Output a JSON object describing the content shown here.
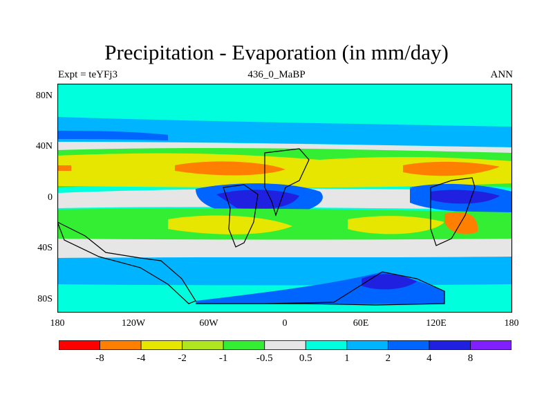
{
  "header": {
    "title": "Precipitation - Evaporation (in mm/day)",
    "left": "Expt = teYFj3",
    "center": "436_0_MaBP",
    "right": "ANN"
  },
  "axes": {
    "y_ticks": [
      "80N",
      "40N",
      "0",
      "40S",
      "80S"
    ],
    "x_ticks": [
      "180",
      "120W",
      "60W",
      "0",
      "60E",
      "120E",
      "180"
    ]
  },
  "colorbar": {
    "colors": [
      "#ff0000",
      "#ff8000",
      "#e6e600",
      "#b0e620",
      "#33ee33",
      "#e6e6e6",
      "#00ffdc",
      "#00b4ff",
      "#0064ff",
      "#2020e0",
      "#8020ff"
    ],
    "labels": [
      "-8",
      "-4",
      "-2",
      "-1",
      "-0.5",
      "0.5",
      "1",
      "2",
      "4",
      "8"
    ]
  },
  "palette": {
    "cyan": "#00ffdc",
    "lightblue": "#00b4ff",
    "blue": "#0064ff",
    "darkblue": "#2020e0",
    "grey": "#e6e6e6",
    "green": "#33ee33",
    "lightgreen": "#b0e620",
    "yellow": "#e6e600",
    "orange": "#ff8000"
  }
}
